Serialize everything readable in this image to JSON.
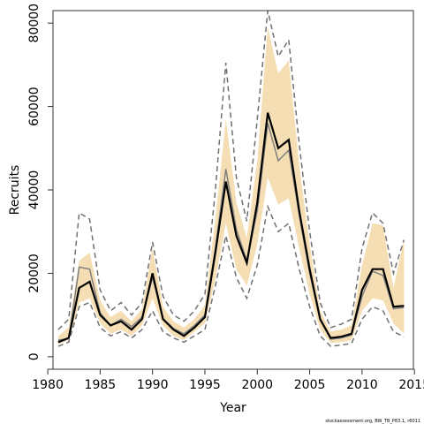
{
  "chart_data": {
    "type": "line",
    "xlabel": "Year",
    "ylabel": "Recruits",
    "xlim": [
      1980.5,
      2014.9
    ],
    "ylim": [
      -3000,
      83000
    ],
    "xticks": [
      1980,
      1985,
      1990,
      1995,
      2000,
      2005,
      2010,
      2015
    ],
    "yticks": [
      0,
      20000,
      40000,
      60000,
      80000
    ],
    "grid": false,
    "legend": "none",
    "x": [
      1981,
      1982,
      1983,
      1984,
      1985,
      1986,
      1987,
      1988,
      1989,
      1990,
      1991,
      1992,
      1993,
      1994,
      1995,
      1996,
      1997,
      1998,
      1999,
      2000,
      2001,
      2002,
      2003,
      2004,
      2005,
      2006,
      2007,
      2008,
      2009,
      2010,
      2011,
      2012,
      2013,
      2014
    ],
    "series": [
      {
        "role": "estimate",
        "values": [
          3500,
          4500,
          16500,
          18000,
          10000,
          7500,
          8500,
          6500,
          9000,
          20000,
          9000,
          6500,
          5000,
          7000,
          9500,
          25000,
          42000,
          29000,
          22500,
          37000,
          58500,
          50000,
          52000,
          35000,
          21000,
          9000,
          4500,
          4800,
          5500,
          16000,
          21000,
          21000,
          12000,
          12200
        ]
      },
      {
        "role": "median",
        "values": [
          4000,
          4300,
          21500,
          21000,
          10500,
          7500,
          9000,
          7200,
          9500,
          19000,
          9200,
          6800,
          5500,
          7500,
          10000,
          26000,
          45000,
          30500,
          23000,
          35000,
          56000,
          47000,
          49500,
          34000,
          20000,
          8800,
          4200,
          4500,
          5200,
          14500,
          20500,
          19500,
          11500,
          11800
        ]
      },
      {
        "role": "lower-bound",
        "values": [
          2500,
          3500,
          12000,
          13000,
          7000,
          5000,
          6000,
          4500,
          6500,
          11000,
          6000,
          4500,
          3500,
          5000,
          6500,
          17000,
          29000,
          19000,
          14000,
          22000,
          36000,
          30000,
          32000,
          21000,
          12000,
          5000,
          2500,
          2800,
          3200,
          9000,
          12000,
          11000,
          6000,
          4800
        ]
      },
      {
        "role": "upper-bound",
        "values": [
          6500,
          9000,
          34500,
          33000,
          16000,
          11000,
          13000,
          10000,
          13000,
          27500,
          14500,
          10000,
          8500,
          11000,
          15000,
          40000,
          70500,
          43000,
          32500,
          57000,
          83000,
          72000,
          76000,
          51000,
          30000,
          13000,
          7000,
          7800,
          9000,
          26000,
          34500,
          32000,
          20000,
          28000
        ]
      },
      {
        "role": "band-lower",
        "values": [
          3000,
          4000,
          13000,
          14000,
          8000,
          5500,
          6500,
          5000,
          7500,
          14000,
          7500,
          5000,
          4000,
          6000,
          8000,
          18500,
          32000,
          21000,
          17000,
          27000,
          43000,
          36500,
          38000,
          26000,
          15000,
          6500,
          3300,
          3500,
          4000,
          11000,
          14000,
          13500,
          8000,
          5500
        ]
      },
      {
        "role": "band-upper",
        "values": [
          5000,
          7000,
          23000,
          25000,
          13500,
          9500,
          11000,
          8500,
          11500,
          26000,
          12000,
          8500,
          7000,
          9000,
          12500,
          33000,
          57000,
          37000,
          28500,
          47000,
          79000,
          68000,
          71000,
          46000,
          27000,
          11000,
          6000,
          6500,
          7500,
          22000,
          32000,
          31500,
          16500,
          28000
        ]
      }
    ],
    "colors": {
      "band": "#f5deb3",
      "estimate": "#000000",
      "median": "#808080",
      "bounds": "#707070",
      "axis": "#333333"
    },
    "annotation": "stockassessment.org, BW_TB_P83.1, r6011"
  }
}
